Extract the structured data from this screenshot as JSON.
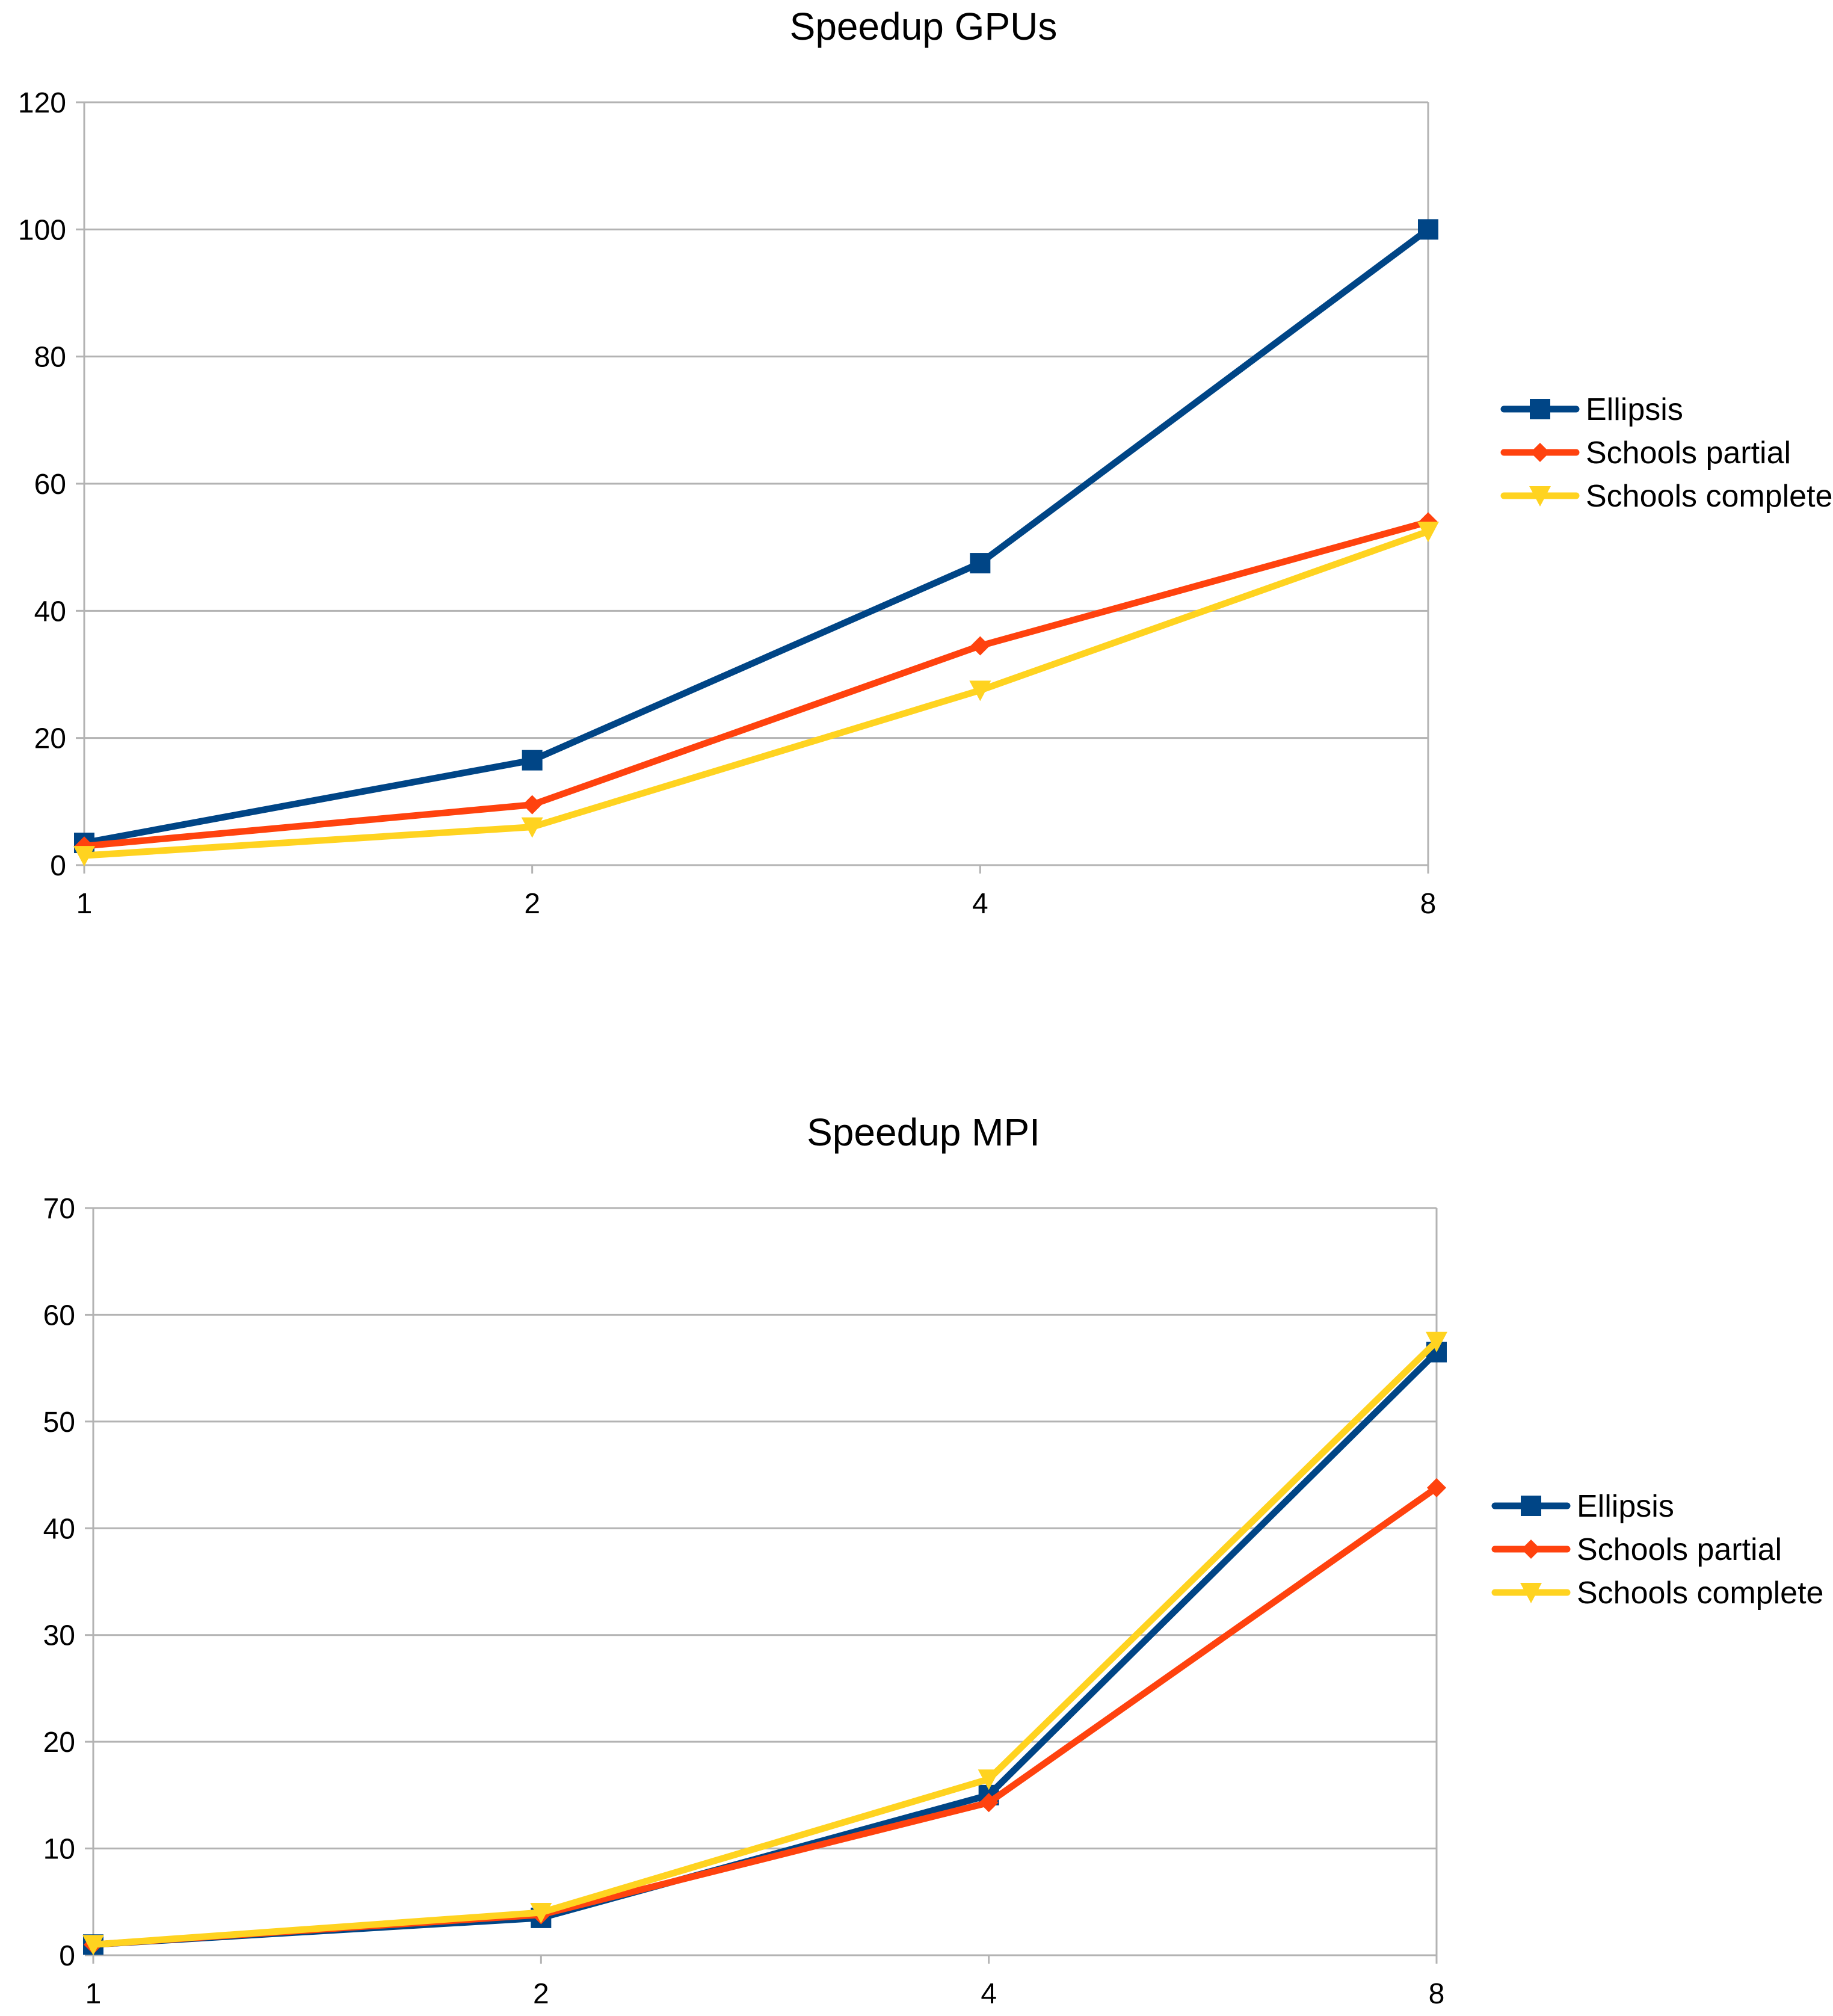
{
  "chart_data": [
    {
      "type": "line",
      "title": "Speedup GPUs",
      "xlabel": "",
      "ylabel": "",
      "categories": [
        "1",
        "2",
        "4",
        "8"
      ],
      "ylim": [
        0,
        120
      ],
      "yticks": [
        "0",
        "20",
        "40",
        "60",
        "80",
        "100",
        "120"
      ],
      "grid": true,
      "legend_position": "right",
      "series": [
        {
          "name": "Ellipsis",
          "values": [
            3.5,
            16.5,
            47.5,
            100
          ],
          "color": "#004586",
          "marker": "square"
        },
        {
          "name": "Schools partial",
          "values": [
            3.0,
            9.5,
            34.5,
            54
          ],
          "color": "#ff420e",
          "marker": "diamond"
        },
        {
          "name": "Schools complete",
          "values": [
            1.5,
            6.0,
            27.5,
            52.5
          ],
          "color": "#ffd320",
          "marker": "triangle-down"
        }
      ]
    },
    {
      "type": "line",
      "title": "Speedup MPI",
      "xlabel": "",
      "ylabel": "",
      "categories": [
        "1",
        "2",
        "4",
        "8"
      ],
      "ylim": [
        0,
        70
      ],
      "yticks": [
        "0",
        "10",
        "20",
        "30",
        "40",
        "50",
        "60",
        "70"
      ],
      "grid": true,
      "legend_position": "right",
      "series": [
        {
          "name": "Ellipsis",
          "values": [
            1.0,
            3.5,
            15.0,
            56.5
          ],
          "color": "#004586",
          "marker": "square"
        },
        {
          "name": "Schools partial",
          "values": [
            1.0,
            3.8,
            14.3,
            43.8
          ],
          "color": "#ff420e",
          "marker": "diamond"
        },
        {
          "name": "Schools complete",
          "values": [
            1.0,
            4.0,
            16.5,
            57.5
          ],
          "color": "#ffd320",
          "marker": "triangle-down"
        }
      ]
    }
  ]
}
